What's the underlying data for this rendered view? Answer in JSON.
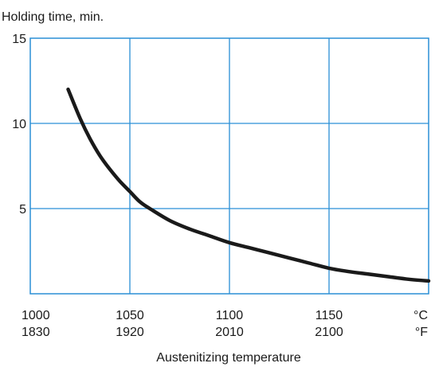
{
  "chart_data": {
    "type": "line",
    "title": "",
    "ylabel": "Holding time, min.",
    "xlabel": "Austenitizing temperature",
    "xlim": [
      1000,
      1200
    ],
    "ylim": [
      0,
      15
    ],
    "grid": true,
    "colors": {
      "grid": "#2a8fd6",
      "line": "#1a1a1a"
    },
    "y_ticks": [
      {
        "value": 5,
        "label": "5"
      },
      {
        "value": 10,
        "label": "10"
      },
      {
        "value": 15,
        "label": "15"
      }
    ],
    "x_ticks": [
      {
        "value": 1000,
        "label_c": "1000",
        "label_f": "1830"
      },
      {
        "value": 1050,
        "label_c": "1050",
        "label_f": "1920"
      },
      {
        "value": 1100,
        "label_c": "1100",
        "label_f": "2010"
      },
      {
        "value": 1150,
        "label_c": "1150",
        "label_f": "2100"
      }
    ],
    "unit_labels": {
      "celsius": "°C",
      "fahrenheit": "°F"
    },
    "series": [
      {
        "x": [
          1019,
          1025,
          1030,
          1035,
          1040,
          1045,
          1050,
          1055,
          1060,
          1070,
          1080,
          1090,
          1100,
          1110,
          1120,
          1130,
          1140,
          1150,
          1160,
          1170,
          1180,
          1190,
          1200
        ],
        "y": [
          12.0,
          10.3,
          9.1,
          8.1,
          7.3,
          6.6,
          6.0,
          5.4,
          5.0,
          4.3,
          3.8,
          3.4,
          3.0,
          2.7,
          2.4,
          2.1,
          1.8,
          1.5,
          1.3,
          1.15,
          1.0,
          0.85,
          0.75
        ]
      }
    ]
  }
}
